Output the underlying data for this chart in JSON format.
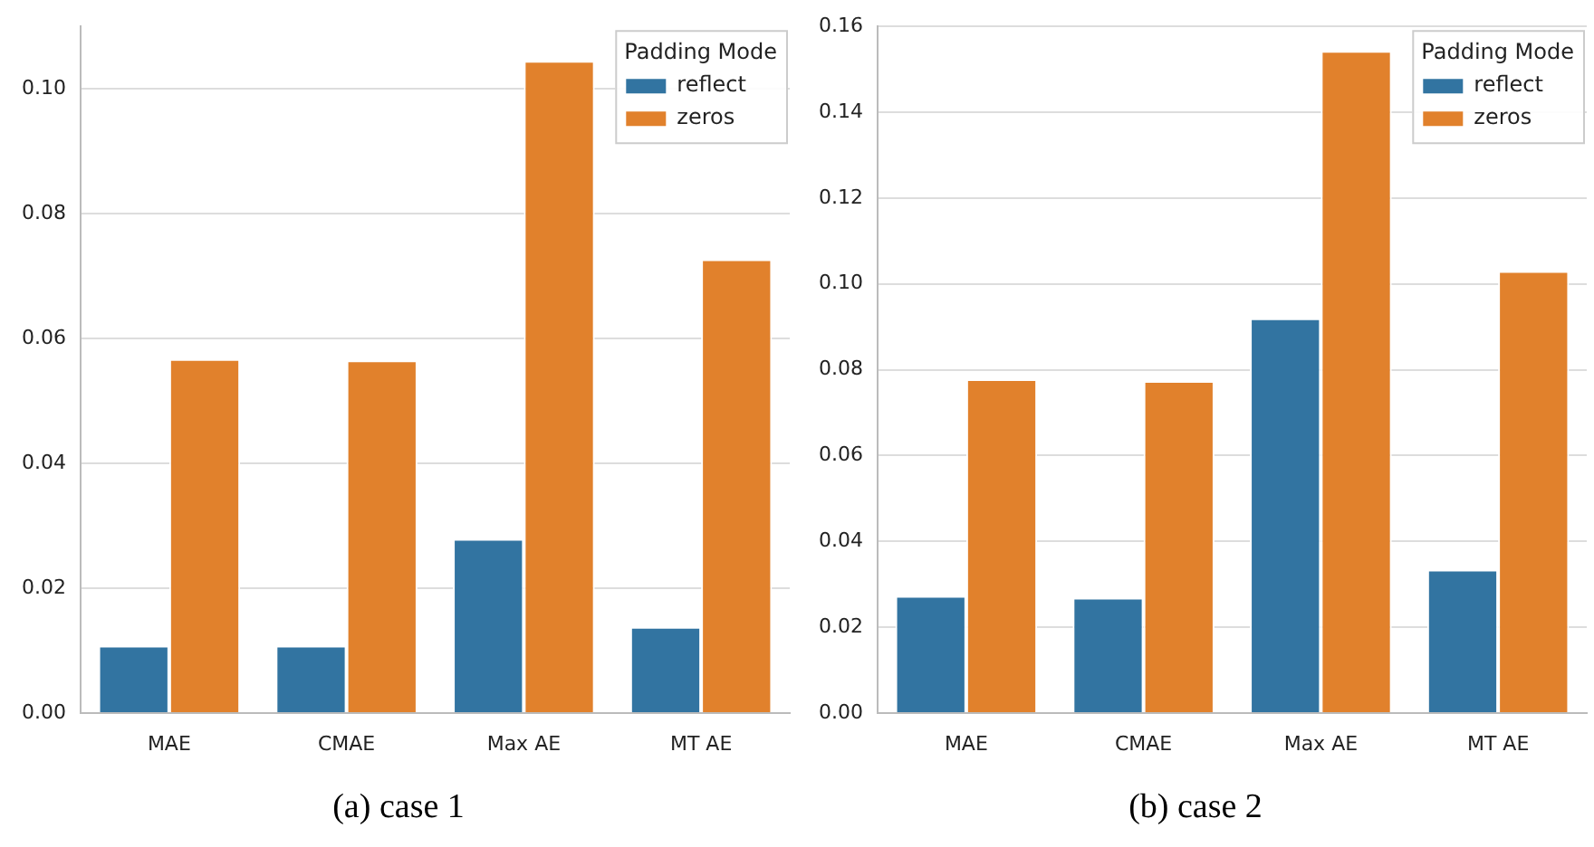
{
  "chart_data": [
    {
      "type": "bar",
      "title": "(a) case 1",
      "categories": [
        "MAE",
        "CMAE",
        "Max AE",
        "MT AE"
      ],
      "legend_title": "Padding Mode",
      "legend": "top right",
      "grid": "y",
      "series": [
        {
          "name": "reflect",
          "color": "#3274a1",
          "values": [
            0.0108,
            0.0108,
            0.0279,
            0.0138
          ]
        },
        {
          "name": "zeros",
          "color": "#e1812c",
          "values": [
            0.0567,
            0.0565,
            0.1045,
            0.0727
          ]
        }
      ],
      "ylim": [
        0,
        0.11
      ],
      "yticks": [
        {
          "value": 0,
          "label": "0.00"
        },
        {
          "value": 0.02,
          "label": "0.02"
        },
        {
          "value": 0.04,
          "label": "0.04"
        },
        {
          "value": 0.06,
          "label": "0.06"
        },
        {
          "value": 0.08,
          "label": "0.08"
        },
        {
          "value": 0.1,
          "label": "0.10"
        }
      ]
    },
    {
      "type": "bar",
      "title": "(b) case 2",
      "categories": [
        "MAE",
        "CMAE",
        "Max AE",
        "MT AE"
      ],
      "legend_title": "Padding Mode",
      "legend": "top right",
      "grid": "y",
      "series": [
        {
          "name": "reflect",
          "color": "#3274a1",
          "values": [
            0.0273,
            0.0269,
            0.092,
            0.0334
          ]
        },
        {
          "name": "zeros",
          "color": "#e1812c",
          "values": [
            0.0778,
            0.0774,
            0.1543,
            0.103
          ]
        }
      ],
      "ylim": [
        0,
        0.16
      ],
      "yticks": [
        {
          "value": 0,
          "label": "0.00"
        },
        {
          "value": 0.02,
          "label": "0.02"
        },
        {
          "value": 0.04,
          "label": "0.04"
        },
        {
          "value": 0.06,
          "label": "0.06"
        },
        {
          "value": 0.08,
          "label": "0.08"
        },
        {
          "value": 0.1,
          "label": "0.10"
        },
        {
          "value": 0.12,
          "label": "0.12"
        },
        {
          "value": 0.14,
          "label": "0.14"
        },
        {
          "value": 0.16,
          "label": "0.16"
        }
      ]
    }
  ]
}
